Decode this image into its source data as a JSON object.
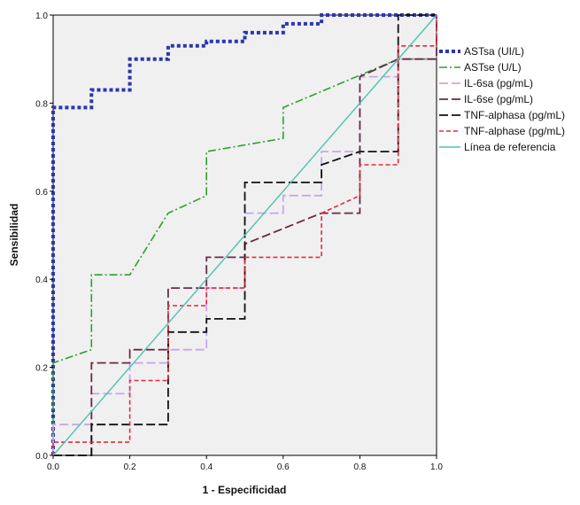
{
  "chart_data": {
    "type": "line",
    "xlabel": "1 - Especificidad",
    "ylabel": "Sensibilidad",
    "xlim": [
      0,
      1
    ],
    "ylim": [
      0,
      1
    ],
    "xticks": [
      "0.0",
      "0.2",
      "0.4",
      "0.6",
      "0.8",
      "1.0"
    ],
    "yticks": [
      "0.0",
      "0.2",
      "0.4",
      "0.6",
      "0.8",
      "1.0"
    ],
    "grid": false,
    "legend_position": "right",
    "plot_background": "#f0f0f0",
    "series": [
      {
        "name": "ASTsa (UI/L)",
        "color": "#2b36b0",
        "dash": "dotted-thick",
        "points": [
          [
            0,
            0
          ],
          [
            0,
            0.79
          ],
          [
            0.1,
            0.79
          ],
          [
            0.1,
            0.83
          ],
          [
            0.2,
            0.83
          ],
          [
            0.2,
            0.9
          ],
          [
            0.3,
            0.9
          ],
          [
            0.3,
            0.93
          ],
          [
            0.4,
            0.93
          ],
          [
            0.4,
            0.94
          ],
          [
            0.5,
            0.94
          ],
          [
            0.5,
            0.96
          ],
          [
            0.6,
            0.96
          ],
          [
            0.6,
            0.98
          ],
          [
            0.7,
            0.98
          ],
          [
            0.7,
            1.0
          ],
          [
            1.0,
            1.0
          ]
        ]
      },
      {
        "name": "ASTse (U/L)",
        "color": "#2ea02e",
        "dash": "dash-dot",
        "points": [
          [
            0,
            0
          ],
          [
            0,
            0.21
          ],
          [
            0.1,
            0.24
          ],
          [
            0.1,
            0.41
          ],
          [
            0.2,
            0.41
          ],
          [
            0.3,
            0.55
          ],
          [
            0.4,
            0.59
          ],
          [
            0.4,
            0.69
          ],
          [
            0.6,
            0.72
          ],
          [
            0.6,
            0.79
          ],
          [
            0.9,
            0.9
          ],
          [
            1.0,
            0.9
          ],
          [
            1.0,
            1.0
          ]
        ]
      },
      {
        "name": "IL-6sa (pg/mL)",
        "color": "#c9a6e8",
        "dash": "long-dash",
        "points": [
          [
            0,
            0
          ],
          [
            0,
            0.07
          ],
          [
            0.1,
            0.07
          ],
          [
            0.1,
            0.14
          ],
          [
            0.2,
            0.14
          ],
          [
            0.2,
            0.21
          ],
          [
            0.3,
            0.21
          ],
          [
            0.3,
            0.24
          ],
          [
            0.4,
            0.24
          ],
          [
            0.4,
            0.38
          ],
          [
            0.5,
            0.38
          ],
          [
            0.5,
            0.55
          ],
          [
            0.6,
            0.55
          ],
          [
            0.6,
            0.59
          ],
          [
            0.7,
            0.59
          ],
          [
            0.7,
            0.69
          ],
          [
            0.8,
            0.69
          ],
          [
            0.8,
            0.86
          ],
          [
            0.9,
            0.86
          ],
          [
            0.9,
            0.9
          ],
          [
            1.0,
            0.9
          ],
          [
            1.0,
            1.0
          ]
        ]
      },
      {
        "name": "IL-6se (pg/mL)",
        "color": "#6a2a4a",
        "dash": "long-dash",
        "points": [
          [
            0,
            0
          ],
          [
            0.1,
            0.0
          ],
          [
            0.1,
            0.21
          ],
          [
            0.2,
            0.21
          ],
          [
            0.2,
            0.24
          ],
          [
            0.3,
            0.24
          ],
          [
            0.3,
            0.38
          ],
          [
            0.4,
            0.38
          ],
          [
            0.4,
            0.45
          ],
          [
            0.5,
            0.45
          ],
          [
            0.5,
            0.48
          ],
          [
            0.7,
            0.55
          ],
          [
            0.8,
            0.55
          ],
          [
            0.8,
            0.86
          ],
          [
            0.9,
            0.9
          ],
          [
            1.0,
            0.9
          ],
          [
            1.0,
            1.0
          ]
        ]
      },
      {
        "name": "TNF-alphasa (pg/mL)",
        "color": "#111111",
        "dash": "long-dash",
        "points": [
          [
            0,
            0
          ],
          [
            0.1,
            0.0
          ],
          [
            0.1,
            0.07
          ],
          [
            0.3,
            0.07
          ],
          [
            0.3,
            0.28
          ],
          [
            0.4,
            0.28
          ],
          [
            0.4,
            0.31
          ],
          [
            0.5,
            0.31
          ],
          [
            0.5,
            0.62
          ],
          [
            0.7,
            0.62
          ],
          [
            0.7,
            0.66
          ],
          [
            0.8,
            0.69
          ],
          [
            0.9,
            0.69
          ],
          [
            0.9,
            1.0
          ],
          [
            1.0,
            1.0
          ]
        ]
      },
      {
        "name": "TNF-alphase (pg/mL)",
        "color": "#e8283c",
        "dash": "short-dash",
        "points": [
          [
            0,
            0
          ],
          [
            0,
            0.03
          ],
          [
            0.2,
            0.03
          ],
          [
            0.2,
            0.17
          ],
          [
            0.3,
            0.17
          ],
          [
            0.3,
            0.34
          ],
          [
            0.4,
            0.34
          ],
          [
            0.4,
            0.38
          ],
          [
            0.5,
            0.38
          ],
          [
            0.5,
            0.45
          ],
          [
            0.7,
            0.45
          ],
          [
            0.7,
            0.55
          ],
          [
            0.8,
            0.59
          ],
          [
            0.8,
            0.66
          ],
          [
            0.9,
            0.66
          ],
          [
            0.9,
            0.93
          ],
          [
            1.0,
            0.93
          ],
          [
            1.0,
            1.0
          ]
        ]
      },
      {
        "name": "Línea de referencia",
        "color": "#4ac4b0",
        "dash": "solid",
        "points": [
          [
            0,
            0
          ],
          [
            1,
            1
          ]
        ]
      }
    ]
  }
}
